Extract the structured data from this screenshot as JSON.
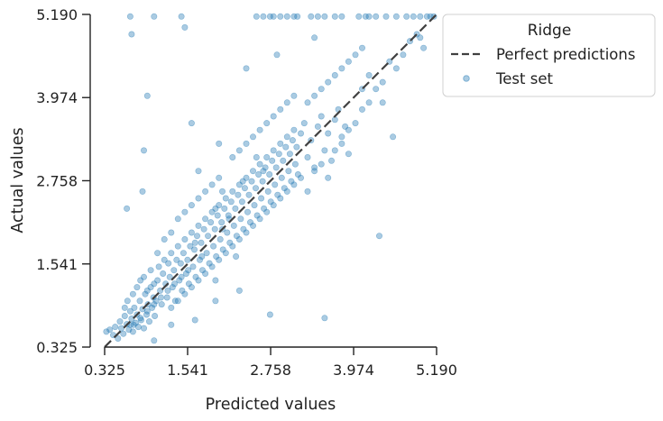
{
  "chart_data": {
    "type": "scatter",
    "title": "",
    "xlabel": "Predicted values",
    "ylabel": "Actual values",
    "xlim": [
      0.325,
      5.19
    ],
    "ylim": [
      0.325,
      5.19
    ],
    "xticks": [
      "0.325",
      "1.541",
      "2.758",
      "3.974",
      "5.190"
    ],
    "yticks": [
      "0.325",
      "1.541",
      "2.758",
      "3.974",
      "5.190"
    ],
    "grid": false,
    "legend": {
      "title": "Ridge",
      "placement": "top-right outside",
      "entries": [
        "Perfect predictions",
        "Test set"
      ]
    },
    "colors": {
      "scatter": "#1f77b4",
      "reference_line": "#404040"
    },
    "reference_line": {
      "name": "Perfect predictions",
      "x": [
        0.325,
        5.19
      ],
      "y": [
        0.325,
        5.19
      ]
    },
    "series": [
      {
        "name": "Test set",
        "points": [
          [
            0.35,
            0.55
          ],
          [
            0.4,
            0.58
          ],
          [
            0.45,
            0.5
          ],
          [
            0.48,
            0.62
          ],
          [
            0.52,
            0.45
          ],
          [
            0.55,
            0.7
          ],
          [
            0.57,
            0.6
          ],
          [
            0.6,
            0.52
          ],
          [
            0.62,
            0.78
          ],
          [
            0.65,
            0.66
          ],
          [
            0.68,
            0.58
          ],
          [
            0.7,
            0.85
          ],
          [
            0.72,
            0.74
          ],
          [
            0.74,
            0.55
          ],
          [
            0.76,
            0.9
          ],
          [
            0.78,
            0.68
          ],
          [
            0.8,
            0.8
          ],
          [
            0.82,
            0.62
          ],
          [
            0.84,
            1.0
          ],
          [
            0.86,
            0.72
          ],
          [
            0.88,
            0.88
          ],
          [
            0.9,
            0.6
          ],
          [
            0.92,
            1.1
          ],
          [
            0.94,
            0.8
          ],
          [
            0.96,
            0.95
          ],
          [
            0.98,
            0.7
          ],
          [
            1.0,
            1.2
          ],
          [
            1.02,
            0.9
          ],
          [
            1.04,
            1.05
          ],
          [
            1.06,
            0.78
          ],
          [
            0.62,
            0.9
          ],
          [
            0.66,
            1.0
          ],
          [
            0.7,
            0.65
          ],
          [
            0.74,
            1.1
          ],
          [
            0.8,
            1.2
          ],
          [
            0.85,
            1.3
          ],
          [
            0.9,
            1.35
          ],
          [
            0.95,
            1.15
          ],
          [
            1.0,
            1.45
          ],
          [
            1.05,
            1.25
          ],
          [
            1.08,
            1.0
          ],
          [
            1.1,
            1.3
          ],
          [
            1.12,
            1.5
          ],
          [
            1.14,
            1.15
          ],
          [
            1.16,
            0.95
          ],
          [
            1.18,
            1.4
          ],
          [
            1.2,
            1.6
          ],
          [
            1.22,
            1.25
          ],
          [
            1.24,
            1.05
          ],
          [
            1.26,
            1.55
          ],
          [
            1.28,
            1.35
          ],
          [
            1.3,
            1.7
          ],
          [
            1.32,
            1.2
          ],
          [
            1.34,
            1.45
          ],
          [
            1.36,
            1.0
          ],
          [
            1.38,
            1.6
          ],
          [
            1.4,
            1.8
          ],
          [
            1.42,
            1.3
          ],
          [
            1.44,
            1.55
          ],
          [
            1.46,
            1.15
          ],
          [
            1.48,
            1.7
          ],
          [
            1.5,
            1.9
          ],
          [
            1.52,
            1.4
          ],
          [
            1.54,
            1.6
          ],
          [
            1.56,
            1.25
          ],
          [
            1.58,
            1.8
          ],
          [
            1.6,
            2.0
          ],
          [
            1.62,
            1.5
          ],
          [
            1.64,
            1.75
          ],
          [
            1.66,
            1.35
          ],
          [
            1.68,
            1.95
          ],
          [
            1.7,
            2.1
          ],
          [
            1.72,
            1.6
          ],
          [
            1.74,
            1.85
          ],
          [
            1.76,
            1.45
          ],
          [
            1.78,
            2.05
          ],
          [
            1.8,
            2.2
          ],
          [
            1.82,
            1.7
          ],
          [
            1.84,
            1.95
          ],
          [
            1.86,
            1.55
          ],
          [
            1.88,
            2.15
          ],
          [
            1.9,
            2.3
          ],
          [
            1.92,
            1.8
          ],
          [
            1.94,
            2.05
          ],
          [
            1.96,
            1.65
          ],
          [
            1.98,
            2.25
          ],
          [
            2.0,
            2.4
          ],
          [
            2.02,
            1.9
          ],
          [
            2.04,
            2.15
          ],
          [
            2.06,
            1.75
          ],
          [
            2.08,
            2.35
          ],
          [
            2.1,
            2.5
          ],
          [
            2.12,
            2.0
          ],
          [
            2.14,
            2.25
          ],
          [
            2.16,
            1.85
          ],
          [
            2.18,
            2.45
          ],
          [
            2.2,
            2.6
          ],
          [
            2.22,
            2.1
          ],
          [
            2.24,
            2.35
          ],
          [
            2.26,
            1.95
          ],
          [
            2.28,
            2.55
          ],
          [
            2.3,
            2.7
          ],
          [
            2.32,
            2.2
          ],
          [
            2.34,
            2.45
          ],
          [
            2.36,
            2.05
          ],
          [
            2.38,
            2.65
          ],
          [
            2.4,
            2.8
          ],
          [
            2.42,
            2.3
          ],
          [
            2.44,
            2.55
          ],
          [
            2.46,
            2.15
          ],
          [
            2.48,
            2.75
          ],
          [
            2.5,
            2.9
          ],
          [
            2.52,
            2.4
          ],
          [
            2.54,
            2.65
          ],
          [
            2.56,
            2.25
          ],
          [
            2.58,
            2.85
          ],
          [
            2.6,
            3.0
          ],
          [
            2.62,
            2.5
          ],
          [
            2.64,
            2.75
          ],
          [
            2.66,
            2.35
          ],
          [
            2.68,
            2.95
          ],
          [
            2.7,
            3.1
          ],
          [
            2.72,
            2.6
          ],
          [
            2.74,
            2.85
          ],
          [
            2.76,
            2.45
          ],
          [
            2.78,
            3.05
          ],
          [
            2.8,
            3.2
          ],
          [
            2.82,
            2.7
          ],
          [
            2.84,
            2.95
          ],
          [
            2.86,
            2.55
          ],
          [
            2.88,
            3.15
          ],
          [
            2.9,
            3.3
          ],
          [
            2.92,
            2.8
          ],
          [
            2.94,
            3.05
          ],
          [
            2.96,
            2.65
          ],
          [
            2.98,
            3.25
          ],
          [
            3.0,
            3.4
          ],
          [
            3.02,
            2.9
          ],
          [
            3.04,
            3.15
          ],
          [
            3.06,
            2.75
          ],
          [
            3.08,
            3.35
          ],
          [
            3.1,
            3.5
          ],
          [
            3.12,
            3.0
          ],
          [
            3.14,
            3.25
          ],
          [
            3.16,
            2.85
          ],
          [
            3.2,
            3.45
          ],
          [
            3.25,
            3.6
          ],
          [
            3.3,
            3.1
          ],
          [
            3.35,
            3.35
          ],
          [
            3.4,
            2.95
          ],
          [
            3.45,
            3.55
          ],
          [
            3.5,
            3.7
          ],
          [
            3.55,
            3.2
          ],
          [
            3.6,
            3.45
          ],
          [
            3.65,
            3.05
          ],
          [
            3.7,
            3.65
          ],
          [
            3.75,
            3.8
          ],
          [
            3.8,
            3.3
          ],
          [
            3.85,
            3.55
          ],
          [
            3.9,
            3.15
          ],
          [
            1.1,
            1.7
          ],
          [
            1.2,
            1.9
          ],
          [
            1.3,
            2.0
          ],
          [
            1.4,
            2.2
          ],
          [
            1.5,
            2.3
          ],
          [
            1.6,
            2.4
          ],
          [
            1.7,
            2.5
          ],
          [
            1.8,
            2.6
          ],
          [
            1.9,
            2.7
          ],
          [
            2.0,
            2.8
          ],
          [
            1.3,
            0.9
          ],
          [
            1.4,
            1.0
          ],
          [
            1.5,
            1.1
          ],
          [
            1.6,
            1.2
          ],
          [
            1.7,
            1.3
          ],
          [
            1.8,
            1.4
          ],
          [
            1.9,
            1.5
          ],
          [
            2.0,
            1.6
          ],
          [
            2.1,
            1.7
          ],
          [
            2.2,
            1.8
          ],
          [
            2.3,
            1.9
          ],
          [
            2.4,
            2.0
          ],
          [
            2.5,
            2.1
          ],
          [
            2.6,
            2.2
          ],
          [
            2.7,
            2.3
          ],
          [
            2.8,
            2.4
          ],
          [
            2.9,
            2.5
          ],
          [
            3.0,
            2.6
          ],
          [
            3.1,
            2.7
          ],
          [
            3.2,
            2.8
          ],
          [
            2.2,
            3.1
          ],
          [
            2.3,
            3.2
          ],
          [
            2.4,
            3.3
          ],
          [
            2.5,
            3.4
          ],
          [
            2.6,
            3.5
          ],
          [
            2.7,
            3.6
          ],
          [
            2.8,
            3.7
          ],
          [
            2.9,
            3.8
          ],
          [
            3.0,
            3.9
          ],
          [
            3.1,
            4.0
          ],
          [
            3.3,
            3.9
          ],
          [
            3.4,
            4.0
          ],
          [
            3.5,
            4.1
          ],
          [
            3.6,
            4.2
          ],
          [
            3.7,
            4.3
          ],
          [
            3.8,
            4.4
          ],
          [
            3.9,
            4.5
          ],
          [
            4.0,
            4.6
          ],
          [
            4.1,
            4.7
          ],
          [
            4.2,
            4.3
          ],
          [
            3.3,
            2.6
          ],
          [
            3.4,
            2.9
          ],
          [
            3.5,
            3.0
          ],
          [
            3.6,
            2.8
          ],
          [
            3.7,
            3.2
          ],
          [
            3.8,
            3.4
          ],
          [
            3.9,
            3.5
          ],
          [
            4.0,
            3.6
          ],
          [
            4.1,
            3.8
          ],
          [
            4.2,
            3.9
          ],
          [
            4.3,
            4.1
          ],
          [
            4.4,
            4.2
          ],
          [
            4.5,
            4.5
          ],
          [
            4.6,
            4.4
          ],
          [
            4.7,
            4.6
          ],
          [
            4.8,
            4.8
          ],
          [
            4.9,
            4.9
          ],
          [
            5.0,
            4.7
          ],
          [
            4.4,
            3.9
          ],
          [
            4.1,
            4.1
          ],
          [
            4.95,
            4.85
          ],
          [
            4.55,
            3.4
          ],
          [
            4.35,
            1.95
          ],
          [
            3.55,
            0.75
          ],
          [
            2.75,
            0.8
          ],
          [
            2.3,
            1.15
          ],
          [
            1.95,
            1.0
          ],
          [
            1.65,
            0.72
          ],
          [
            1.3,
            0.65
          ],
          [
            1.05,
            0.42
          ],
          [
            0.72,
            4.9
          ],
          [
            0.95,
            4.0
          ],
          [
            0.65,
            2.35
          ],
          [
            0.88,
            2.6
          ],
          [
            0.9,
            3.2
          ],
          [
            1.6,
            3.6
          ],
          [
            1.7,
            2.9
          ],
          [
            2.0,
            3.3
          ],
          [
            2.4,
            4.4
          ],
          [
            2.85,
            4.6
          ],
          [
            1.95,
            1.3
          ],
          [
            2.05,
            2.05
          ],
          [
            2.15,
            2.2
          ],
          [
            2.25,
            1.65
          ],
          [
            1.75,
            1.65
          ],
          [
            1.65,
            1.85
          ],
          [
            1.55,
            1.45
          ],
          [
            1.45,
            1.35
          ],
          [
            1.35,
            1.25
          ],
          [
            1.25,
            1.15
          ],
          [
            1.15,
            1.05
          ],
          [
            1.05,
            0.95
          ],
          [
            0.95,
            0.85
          ],
          [
            0.85,
            0.75
          ],
          [
            0.75,
            0.65
          ],
          [
            1.95,
            2.35
          ],
          [
            2.35,
            2.75
          ],
          [
            2.55,
            3.1
          ],
          [
            2.65,
            2.9
          ],
          [
            2.05,
            2.6
          ],
          [
            0.7,
            5.16
          ],
          [
            1.05,
            5.16
          ],
          [
            1.45,
            5.16
          ],
          [
            2.55,
            5.16
          ],
          [
            2.65,
            5.16
          ],
          [
            2.75,
            5.16
          ],
          [
            2.8,
            5.16
          ],
          [
            2.9,
            5.16
          ],
          [
            3.0,
            5.16
          ],
          [
            3.1,
            5.16
          ],
          [
            3.15,
            5.16
          ],
          [
            3.35,
            5.16
          ],
          [
            3.45,
            5.16
          ],
          [
            3.55,
            5.16
          ],
          [
            3.7,
            5.16
          ],
          [
            3.8,
            5.16
          ],
          [
            4.05,
            5.16
          ],
          [
            4.15,
            5.16
          ],
          [
            4.2,
            5.16
          ],
          [
            4.3,
            5.16
          ],
          [
            4.45,
            5.16
          ],
          [
            4.6,
            5.16
          ],
          [
            4.75,
            5.16
          ],
          [
            4.85,
            5.16
          ],
          [
            4.95,
            5.16
          ],
          [
            5.05,
            5.16
          ],
          [
            5.1,
            5.16
          ],
          [
            5.15,
            5.16
          ],
          [
            1.5,
            5.0
          ],
          [
            3.4,
            4.85
          ]
        ]
      }
    ]
  }
}
